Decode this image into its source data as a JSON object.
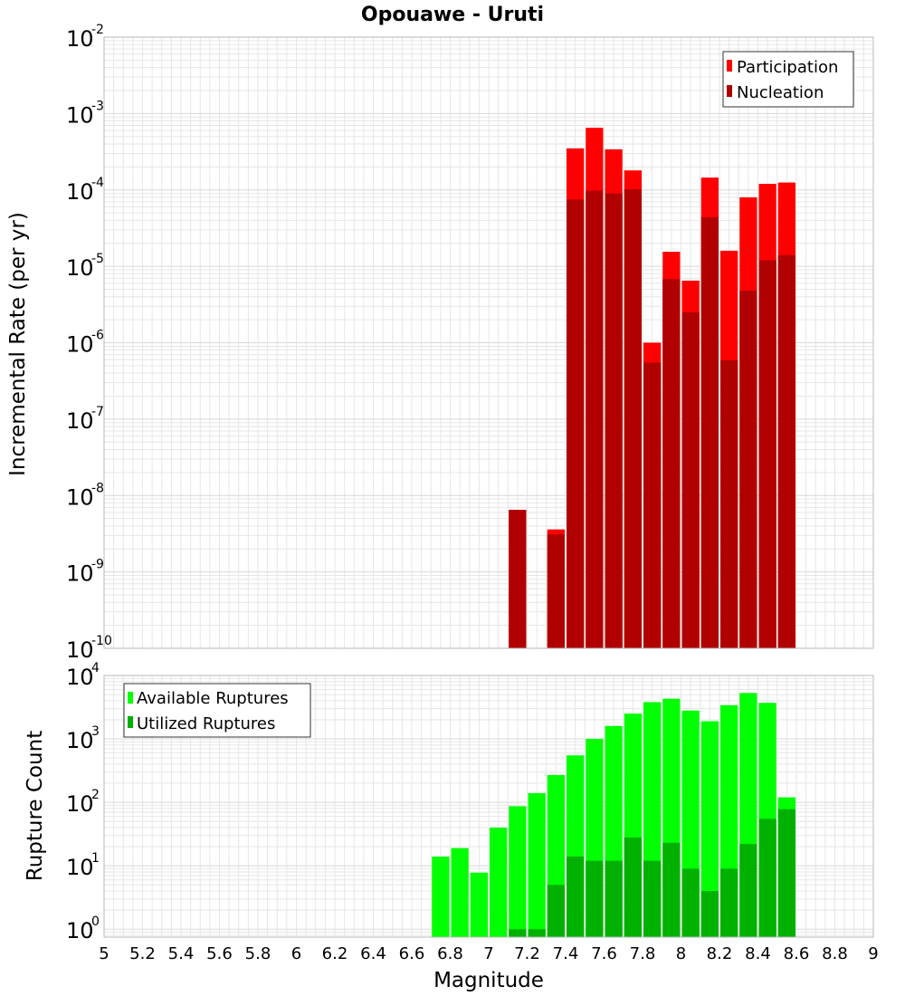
{
  "colors": {
    "participation": "#ff0000",
    "nucleation": "#b10000",
    "available": "#00ff00",
    "utilized": "#00b100",
    "grid": "#e6e6e6",
    "frame": "#b8b8b8"
  },
  "chart_data": [
    {
      "type": "bar",
      "scale": "log",
      "title": "Opouawe - Uruti",
      "xlabel": "Magnitude",
      "ylabel": "Incremental Rate (per yr)",
      "xlim": [
        5,
        9
      ],
      "ylim": [
        1e-10,
        0.01
      ],
      "x": [
        7.1,
        7.3,
        7.4,
        7.5,
        7.6,
        7.7,
        7.8,
        7.9,
        8.0,
        8.1,
        8.2,
        8.3,
        8.4,
        8.5
      ],
      "series": [
        {
          "name": "Participation",
          "values": [
            6.5e-09,
            3.6e-09,
            0.00035,
            0.00065,
            0.00034,
            0.00018,
            1e-06,
            1.55e-05,
            6.5e-06,
            0.000145,
            1.6e-05,
            8e-05,
            0.00012,
            0.000125
          ]
        },
        {
          "name": "Nucleation",
          "values": [
            6.5e-09,
            3.1e-09,
            7.5e-05,
            9.8e-05,
            9e-05,
            0.000102,
            5.5e-07,
            6.8e-06,
            2.5e-06,
            4.4e-05,
            5.9e-07,
            4.8e-06,
            1.2e-05,
            1.4e-05
          ]
        }
      ],
      "yticks": [
        {
          "base": "10",
          "exp": "-2",
          "value": 0.01
        },
        {
          "base": "10",
          "exp": "-3",
          "value": 0.001
        },
        {
          "base": "10",
          "exp": "-4",
          "value": 0.0001
        },
        {
          "base": "10",
          "exp": "-5",
          "value": 1e-05
        },
        {
          "base": "10",
          "exp": "-6",
          "value": 1e-06
        },
        {
          "base": "10",
          "exp": "-7",
          "value": 1e-07
        },
        {
          "base": "10",
          "exp": "-8",
          "value": 1e-08
        },
        {
          "base": "10",
          "exp": "-9",
          "value": 1e-09
        },
        {
          "base": "10",
          "exp": "-10",
          "value": 1e-10
        }
      ],
      "legend": {
        "position": "top-right",
        "entries": [
          "Participation",
          "Nucleation"
        ]
      }
    },
    {
      "type": "bar",
      "scale": "log",
      "title": "",
      "xlabel": "Magnitude",
      "ylabel": "Rupture Count",
      "xlim": [
        5,
        9
      ],
      "ylim": [
        0.75,
        10000
      ],
      "x": [
        6.7,
        6.8,
        6.9,
        7.0,
        7.1,
        7.2,
        7.3,
        7.4,
        7.5,
        7.6,
        7.7,
        7.8,
        7.9,
        8.0,
        8.1,
        8.2,
        8.3,
        8.4,
        8.5
      ],
      "series": [
        {
          "name": "Available Ruptures",
          "values": [
            14,
            19,
            7.8,
            40,
            87,
            140,
            270,
            550,
            1000,
            1600,
            2500,
            3800,
            4300,
            2800,
            1900,
            3400,
            5300,
            3700,
            120
          ]
        },
        {
          "name": "Utilized Ruptures",
          "values": [
            0,
            0,
            0,
            0,
            1,
            1,
            5,
            14,
            12,
            12,
            28,
            12,
            23,
            9,
            4,
            9,
            22,
            55,
            78
          ]
        }
      ],
      "yticks": [
        {
          "base": "10",
          "exp": "4",
          "value": 10000
        },
        {
          "base": "10",
          "exp": "3",
          "value": 1000
        },
        {
          "base": "10",
          "exp": "2",
          "value": 100
        },
        {
          "base": "10",
          "exp": "1",
          "value": 10
        },
        {
          "base": "10",
          "exp": "0",
          "value": 1
        }
      ],
      "xticks": [
        "5",
        "5.2",
        "5.4",
        "5.6",
        "5.8",
        "6",
        "6.2",
        "6.4",
        "6.6",
        "6.8",
        "7",
        "7.2",
        "7.4",
        "7.6",
        "7.8",
        "8",
        "8.2",
        "8.4",
        "8.6",
        "8.8",
        "9"
      ],
      "legend": {
        "position": "top-left",
        "entries": [
          "Available Ruptures",
          "Utilized Ruptures"
        ]
      }
    }
  ]
}
